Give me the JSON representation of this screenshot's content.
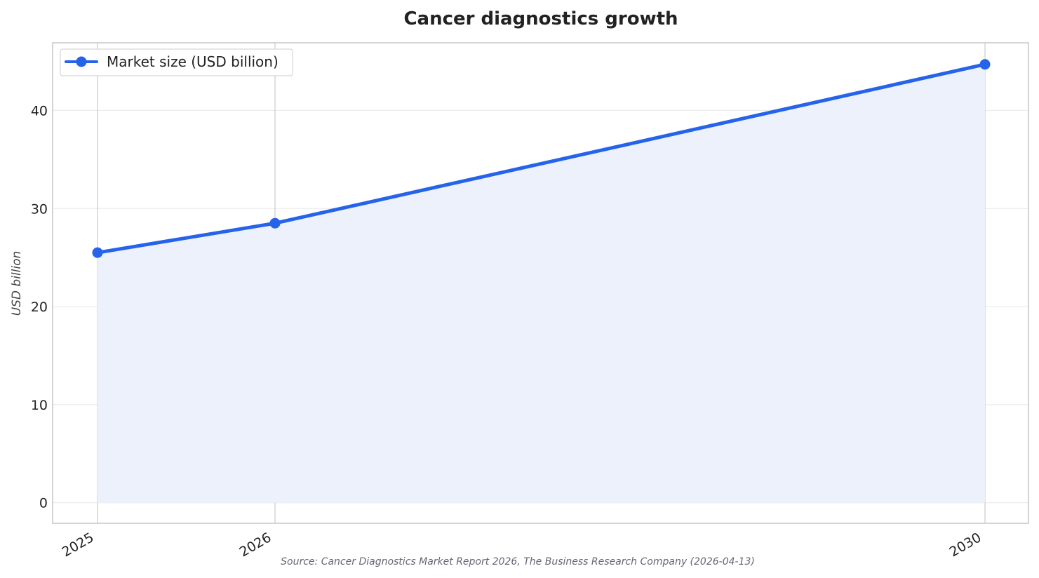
{
  "chart_data": {
    "type": "line",
    "title": "Cancer diagnostics growth",
    "xlabel": "",
    "ylabel": "USD billion",
    "x": [
      "2025",
      "2026",
      "2030"
    ],
    "series": [
      {
        "name": "Market size (USD billion)",
        "values": [
          25.5,
          28.5,
          44.7
        ],
        "color": "#2563eb",
        "fill": "#ecf1fc"
      }
    ],
    "yticks": [
      0,
      10,
      20,
      30,
      40
    ],
    "ylim": [
      -2.1,
      46.9
    ],
    "grid": true,
    "legend_position": "top-left",
    "source": "Source: Cancer Diagnostics Market Report 2026, The Business Research Company (2026-04-13)"
  }
}
